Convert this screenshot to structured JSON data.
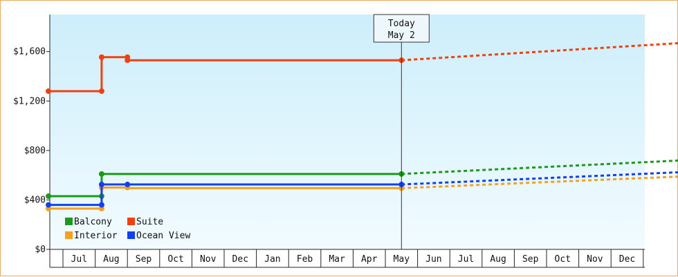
{
  "chart_data": {
    "type": "line",
    "title": "",
    "xlabel": "",
    "ylabel": "",
    "ylim": [
      0,
      1900
    ],
    "y_ticks": [
      0,
      400,
      800,
      1200,
      1600
    ],
    "y_tick_labels": [
      "$0",
      "$400",
      "$800",
      "$1,200",
      "$1,600"
    ],
    "x_months": [
      "Jul",
      "Aug",
      "Sep",
      "Oct",
      "Nov",
      "Dec",
      "Jan",
      "Feb",
      "Mar",
      "Apr",
      "May",
      "Jun",
      "Jul",
      "Aug",
      "Sep",
      "Oct",
      "Nov",
      "Dec"
    ],
    "grid": false,
    "legend_position": "bottom-left",
    "today": {
      "line1": "Today",
      "line2": "May 2",
      "x": 10.5
    },
    "series": [
      {
        "name": "Balcony",
        "color": "#1a9a1a",
        "points": [
          [
            -0.45,
            430
          ],
          [
            1.2,
            430
          ],
          [
            1.2,
            610
          ],
          [
            10.5,
            610
          ]
        ],
        "markers": [
          -0.45,
          1.2,
          1.2,
          10.5
        ],
        "projection": [
          [
            10.5,
            610
          ],
          [
            19.2,
            720
          ]
        ]
      },
      {
        "name": "Suite",
        "color": "#f04010",
        "points": [
          [
            -0.45,
            1280
          ],
          [
            1.2,
            1280
          ],
          [
            1.2,
            1555
          ],
          [
            2.0,
            1555
          ],
          [
            2.0,
            1530
          ],
          [
            10.5,
            1530
          ]
        ],
        "markers": [
          -0.45,
          1.2,
          1.2,
          2.0,
          2.0,
          10.5
        ],
        "projection": [
          [
            10.5,
            1530
          ],
          [
            19.2,
            1670
          ]
        ]
      },
      {
        "name": "Interior",
        "color": "#f4a020",
        "points": [
          [
            -0.45,
            330
          ],
          [
            1.2,
            330
          ],
          [
            1.2,
            500
          ],
          [
            2.0,
            500
          ],
          [
            2.0,
            495
          ],
          [
            10.5,
            495
          ]
        ],
        "markers": [
          -0.45,
          1.2,
          1.2,
          2.0,
          10.5
        ],
        "projection": [
          [
            10.5,
            495
          ],
          [
            19.2,
            590
          ]
        ]
      },
      {
        "name": "Ocean View",
        "color": "#1040f0",
        "points": [
          [
            -0.45,
            360
          ],
          [
            1.2,
            360
          ],
          [
            1.2,
            525
          ],
          [
            10.5,
            525
          ]
        ],
        "markers": [
          -0.45,
          1.2,
          1.2,
          2.0,
          10.5
        ],
        "projection": [
          [
            10.5,
            525
          ],
          [
            19.2,
            625
          ]
        ]
      }
    ],
    "legend": [
      {
        "label": "Balcony",
        "color": "#1a9a1a"
      },
      {
        "label": "Suite",
        "color": "#f04010"
      },
      {
        "label": "Interior",
        "color": "#f4a020"
      },
      {
        "label": "Ocean View",
        "color": "#1040f0"
      }
    ]
  }
}
